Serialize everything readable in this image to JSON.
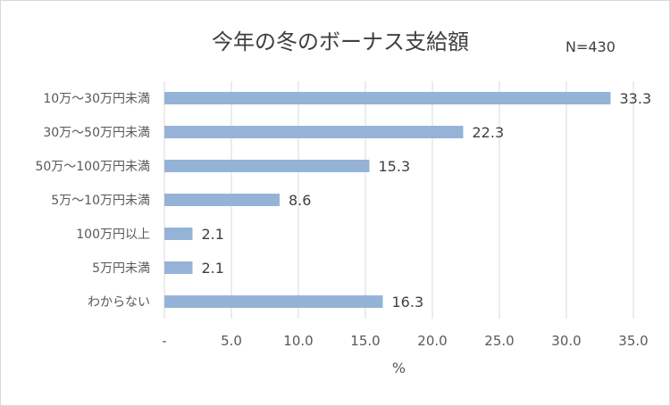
{
  "title": "今年の冬のボーナス支給額",
  "note": "N=430",
  "chart_data": {
    "type": "bar",
    "orientation": "horizontal",
    "title": "今年の冬のボーナス支給額",
    "xlabel": "%",
    "ylabel": "",
    "xlim": [
      0,
      35
    ],
    "tick_values": [
      0,
      5,
      10,
      15,
      20,
      25,
      30,
      35
    ],
    "tick_labels": [
      "-",
      "5.0",
      "10.0",
      "15.0",
      "20.0",
      "25.0",
      "30.0",
      "35.0"
    ],
    "grid": true,
    "categories": [
      "10万～30万円未満",
      "30万～50万円未満",
      "50万～100万円未満",
      "5万～10万円未満",
      "100万円以上",
      "5万円未満",
      "わからない"
    ],
    "values": [
      33.3,
      22.3,
      15.3,
      8.6,
      2.1,
      2.1,
      16.3
    ],
    "value_labels": [
      "33.3",
      "22.3",
      "15.3",
      "8.6",
      "2.1",
      "2.1",
      "16.3"
    ],
    "bar_color": "#95b3d7"
  }
}
